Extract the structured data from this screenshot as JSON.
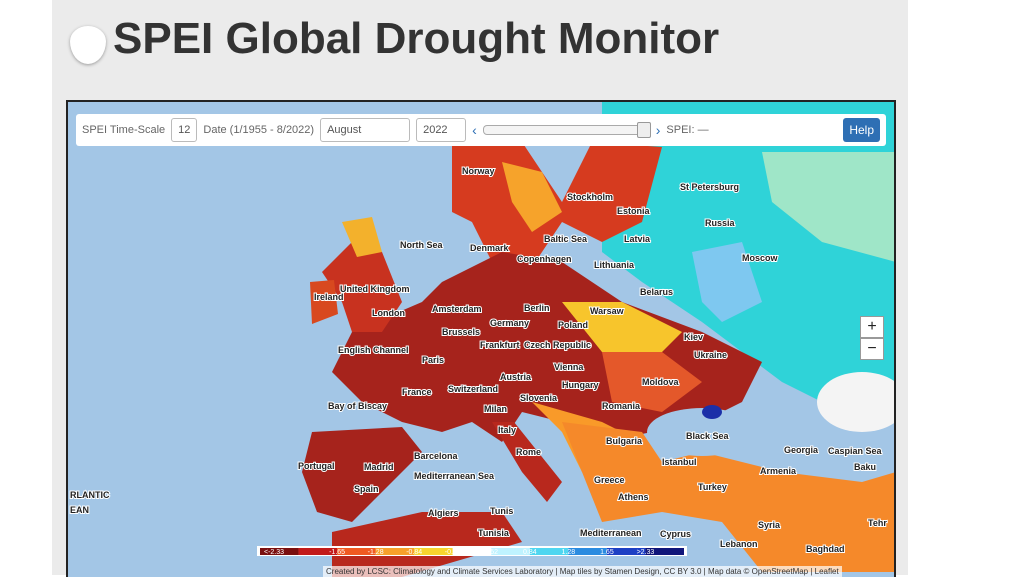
{
  "header": {
    "title": "SPEI Global Drought Monitor"
  },
  "controls": {
    "time_scale_label": "SPEI Time-Scale",
    "time_scale_value": "12",
    "date_label": "Date (1/1955 - 8/2022)",
    "month_value": "August",
    "year_value": "2022",
    "prev": "‹",
    "next": "›",
    "spei_readout": "SPEI: —",
    "help": "Help"
  },
  "zoom": {
    "in": "+",
    "out": "−"
  },
  "map_labels": [
    "Norway",
    "Stockholm",
    "Estonia",
    "St Petersburg",
    "Russia",
    "North Sea",
    "Denmark",
    "Baltic Sea",
    "Copenhagen",
    "Latvia",
    "Lithuania",
    "Moscow",
    "Ireland",
    "United Kingdom",
    "Belarus",
    "London",
    "Amsterdam",
    "Berlin",
    "Warsaw",
    "Brussels",
    "Germany",
    "Poland",
    "Kiev",
    "English Channel",
    "Frankfurt",
    "Czech Republic",
    "Ukraine",
    "Paris",
    "Vienna",
    "Austria",
    "Hungary",
    "Moldova",
    "France",
    "Switzerland",
    "Bay of Biscay",
    "Milan",
    "Slovenia",
    "Romania",
    "Black Sea",
    "Italy",
    "Bulgaria",
    "Georgia",
    "Caspian Sea",
    "Portugal",
    "Madrid",
    "Barcelona",
    "Rome",
    "Istanbul",
    "Armenia",
    "Baku",
    "Spain",
    "Mediterranean Sea",
    "Greece",
    "Turkey",
    "Algiers",
    "Tunis",
    "Athens",
    "Tunisia",
    "Mediterranean",
    "Cyprus",
    "Syria",
    "Lebanon",
    "Baghdad",
    "Tehr",
    "RLANTIC",
    "EAN"
  ],
  "legend": {
    "labels": [
      "<-2.33",
      "-1.65",
      "-1.28",
      "-0.84",
      "-0.52",
      "0.52",
      "0.84",
      "1.28",
      "1.65",
      ">2.33"
    ]
  },
  "attribution": "Created by LCSC: Climatology and Climate Services Laboratory | Map tiles by Stamen Design, CC BY 3.0 | Map data © OpenStreetMap | Leaflet"
}
